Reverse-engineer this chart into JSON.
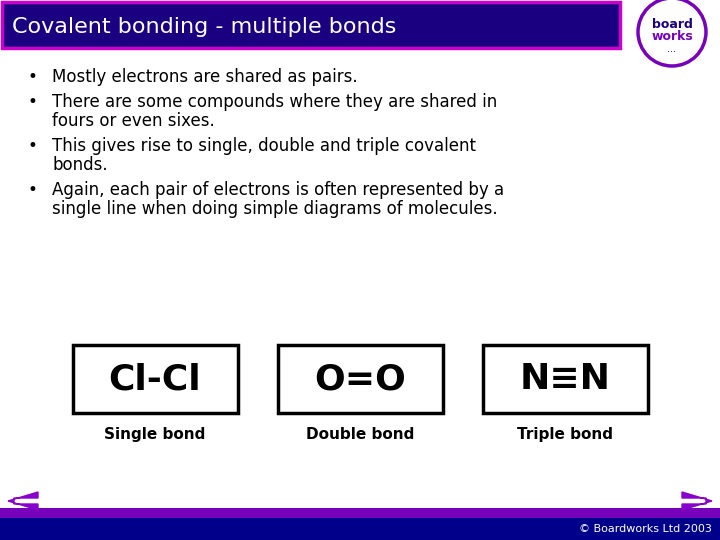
{
  "title": "Covalent bonding - multiple bonds",
  "title_bg": "#1a0080",
  "title_fg": "#ffffff",
  "title_border": "#cc00cc",
  "bullet_points": [
    [
      "Mostly electrons are shared as pairs."
    ],
    [
      "There are some compounds where they are shared in",
      "fours or even sixes."
    ],
    [
      "This gives rise to single, double and triple covalent",
      "bonds."
    ],
    [
      "Again, each pair of electrons is often represented by a",
      "single line when doing simple diagrams of molecules."
    ]
  ],
  "bonds": [
    {
      "formula": "Cl-Cl",
      "label": "Single bond"
    },
    {
      "formula": "O=O",
      "label": "Double bond"
    },
    {
      "formula": "N≡N",
      "label": "Triple bond"
    }
  ],
  "bond_box_color": "#ffffff",
  "bond_box_border": "#000000",
  "footer_bar_top": "#7700bb",
  "footer_bar_bottom": "#00008b",
  "footer_text": "© Boardworks Ltd 2003",
  "arrow_color": "#8800cc",
  "bg_color": "#ffffff",
  "font_color": "#000000",
  "logo_text1": "board",
  "logo_text2": "works",
  "logo_text3": "...",
  "logo_color1": "#1a0080",
  "logo_color2": "#7700bb",
  "logo_circle_color": "#7700bb"
}
